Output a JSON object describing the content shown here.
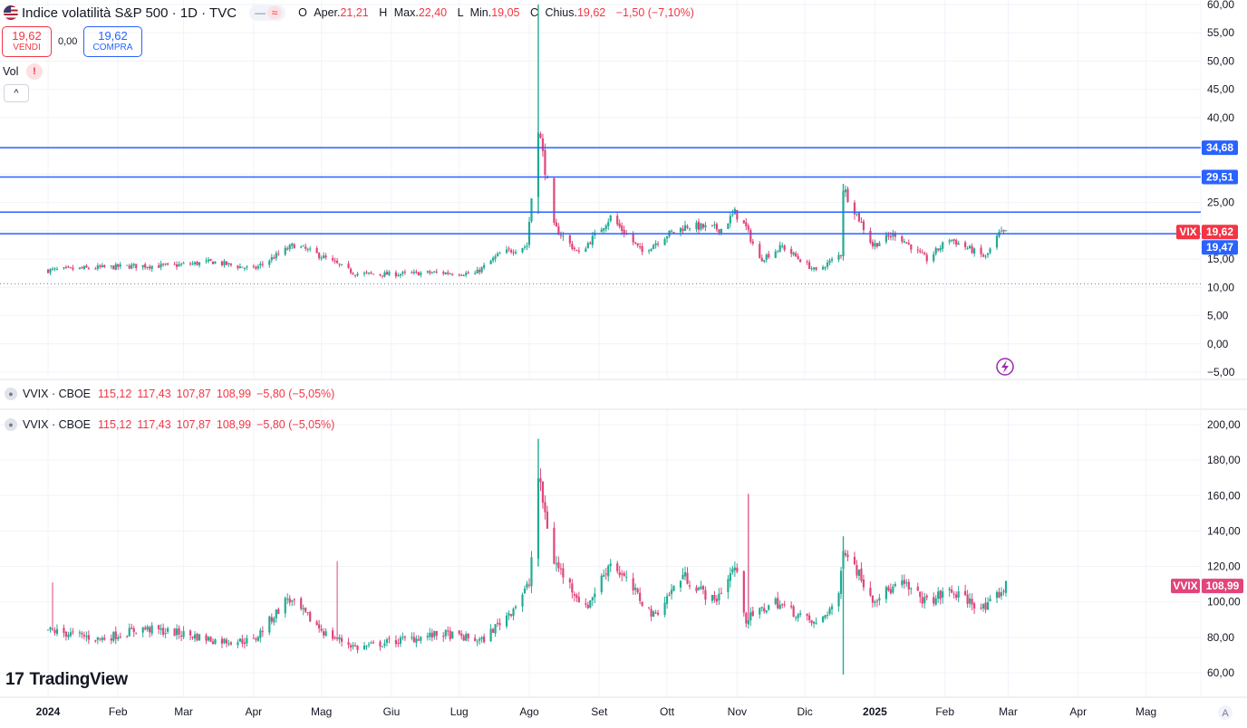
{
  "header": {
    "title": "Indice volatilità S&P 500 · 1D · TVC",
    "pill_left": "—",
    "pill_right": "≈",
    "ohlc": [
      {
        "k": "O",
        "v": "Aper.21,21"
      },
      {
        "k": "H",
        "v": "Max.22,40"
      },
      {
        "k": "L",
        "v": "Min.19,05"
      },
      {
        "k": "C",
        "v": "Chius.19,62"
      },
      {
        "k": "",
        "v": "−1,50 (−7,10%)"
      }
    ],
    "ohlc_labels": {
      "o": "O",
      "o_v": "Aper.",
      "o_n": "21,21",
      "h": "H",
      "h_v": "Max.",
      "h_n": "22,40",
      "l": "L",
      "l_v": "Min.",
      "l_n": "19,05",
      "c": "C",
      "c_v": "Chius.",
      "c_n": "19,62",
      "chg": "−1,50 (−7,10%)"
    }
  },
  "trade": {
    "sell_price": "19,62",
    "sell_label": "VENDI",
    "spread": "0,00",
    "buy_price": "19,62",
    "buy_label": "COMPRA"
  },
  "volume": {
    "label": "Vol",
    "warning": "!",
    "collapse": "^"
  },
  "vvix_legend": {
    "name": "VVIX · CBOE",
    "open": "115,12",
    "high": "117,43",
    "low": "107,87",
    "close": "108,99",
    "change": "−5,80 (−5,05%)"
  },
  "branding": {
    "mark": "17",
    "name": "TradingView"
  },
  "colors": {
    "up": "#22ab94",
    "down": "#e0457b",
    "hline": "#2962ff",
    "vix_badge": "#f23645",
    "vvix_badge": "#e0457b",
    "axis_text": "#131722"
  },
  "icons": {
    "flash": "lightning-icon",
    "flag": "us-flag-icon",
    "eye": "eye-icon"
  },
  "chart_data": [
    {
      "type": "candlestick",
      "title": "Indice volatilità S&P 500",
      "series_name": "VIX",
      "ylim": [
        -5,
        60
      ],
      "yticks": [
        "60,00",
        "55,00",
        "50,00",
        "45,00",
        "40,00",
        "35,00",
        "30,00",
        "25,00",
        "20,00",
        "15,00",
        "10,00",
        "5,00",
        "0,00",
        "−5,00"
      ],
      "ytick_values": [
        60,
        55,
        50,
        45,
        40,
        35,
        30,
        25,
        20,
        15,
        10,
        5,
        0,
        -5
      ],
      "last_value": "19,62",
      "last_label": "VIX",
      "horizontal_lines": [
        {
          "value": 34.68,
          "label": "34,68"
        },
        {
          "value": 29.51,
          "label": "29,51"
        },
        {
          "value": 23.3,
          "label": ""
        },
        {
          "value": 19.47,
          "label": "19,47"
        }
      ],
      "dotted_line": 10.62,
      "anchors": [
        {
          "date": "2024-01-01",
          "v": 13.0
        },
        {
          "date": "2024-01-20",
          "v": 13.4
        },
        {
          "date": "2024-02-10",
          "v": 13.8
        },
        {
          "date": "2024-02-24",
          "v": 13.8
        },
        {
          "date": "2024-03-14",
          "v": 14.5
        },
        {
          "date": "2024-04-01",
          "v": 13.2
        },
        {
          "date": "2024-04-19",
          "v": 17.5
        },
        {
          "date": "2024-05-01",
          "v": 15.5
        },
        {
          "date": "2024-05-16",
          "v": 12.4
        },
        {
          "date": "2024-06-01",
          "v": 12.3
        },
        {
          "date": "2024-06-20",
          "v": 12.6
        },
        {
          "date": "2024-07-08",
          "v": 12.4
        },
        {
          "date": "2024-07-19",
          "v": 15.9
        },
        {
          "date": "2024-07-31",
          "v": 17.4
        },
        {
          "date": "2024-08-05",
          "v": 38.6
        },
        {
          "date": "2024-08-12",
          "v": 20.7
        },
        {
          "date": "2024-08-23",
          "v": 15.9
        },
        {
          "date": "2024-09-06",
          "v": 22.4
        },
        {
          "date": "2024-09-20",
          "v": 16.2
        },
        {
          "date": "2024-10-01",
          "v": 19.3
        },
        {
          "date": "2024-10-10",
          "v": 20.9
        },
        {
          "date": "2024-10-25",
          "v": 20.3
        },
        {
          "date": "2024-10-31",
          "v": 23.2
        },
        {
          "date": "2024-11-05",
          "v": 20.5
        },
        {
          "date": "2024-11-11",
          "v": 14.9
        },
        {
          "date": "2024-11-21",
          "v": 17.2
        },
        {
          "date": "2024-12-06",
          "v": 12.8
        },
        {
          "date": "2024-12-17",
          "v": 15.9
        },
        {
          "date": "2024-12-18",
          "v": 27.6
        },
        {
          "date": "2024-12-31",
          "v": 17.4
        },
        {
          "date": "2025-01-10",
          "v": 19.5
        },
        {
          "date": "2025-01-24",
          "v": 14.9
        },
        {
          "date": "2025-02-03",
          "v": 18.6
        },
        {
          "date": "2025-02-19",
          "v": 15.3
        },
        {
          "date": "2025-02-25",
          "v": 19.4
        },
        {
          "date": "2025-02-28",
          "v": 19.62
        }
      ]
    },
    {
      "type": "candlestick",
      "title": "VVIX · CBOE",
      "series_name": "VVIX",
      "ylim": [
        50,
        205
      ],
      "yticks": [
        "200,00",
        "180,00",
        "160,00",
        "140,00",
        "120,00",
        "100,00",
        "80,00",
        "60,00"
      ],
      "ytick_values": [
        200,
        180,
        160,
        140,
        120,
        100,
        80,
        60
      ],
      "last_value": "108,99",
      "last_label": "VVIX",
      "anchors": [
        {
          "date": "2024-01-01",
          "v": 84
        },
        {
          "date": "2024-01-24",
          "v": 79
        },
        {
          "date": "2024-02-12",
          "v": 85
        },
        {
          "date": "2024-03-01",
          "v": 82
        },
        {
          "date": "2024-03-16",
          "v": 78
        },
        {
          "date": "2024-04-01",
          "v": 78
        },
        {
          "date": "2024-04-16",
          "v": 102
        },
        {
          "date": "2024-05-03",
          "v": 82
        },
        {
          "date": "2024-05-17",
          "v": 74
        },
        {
          "date": "2024-06-03",
          "v": 78
        },
        {
          "date": "2024-06-24",
          "v": 82
        },
        {
          "date": "2024-07-11",
          "v": 78
        },
        {
          "date": "2024-07-24",
          "v": 95
        },
        {
          "date": "2024-08-01",
          "v": 110
        },
        {
          "date": "2024-08-05",
          "v": 170
        },
        {
          "date": "2024-08-12",
          "v": 123
        },
        {
          "date": "2024-08-26",
          "v": 96
        },
        {
          "date": "2024-09-06",
          "v": 123
        },
        {
          "date": "2024-09-25",
          "v": 92
        },
        {
          "date": "2024-10-08",
          "v": 115
        },
        {
          "date": "2024-10-22",
          "v": 100
        },
        {
          "date": "2024-10-31",
          "v": 120
        },
        {
          "date": "2024-11-05",
          "v": 90
        },
        {
          "date": "2024-11-18",
          "v": 100
        },
        {
          "date": "2024-12-06",
          "v": 87
        },
        {
          "date": "2024-12-16",
          "v": 102
        },
        {
          "date": "2024-12-18",
          "v": 132
        },
        {
          "date": "2024-12-31",
          "v": 102
        },
        {
          "date": "2025-01-13",
          "v": 110
        },
        {
          "date": "2025-01-24",
          "v": 100
        },
        {
          "date": "2025-02-03",
          "v": 106
        },
        {
          "date": "2025-02-19",
          "v": 96
        },
        {
          "date": "2025-02-28",
          "v": 108.99
        }
      ]
    }
  ],
  "x_axis": {
    "ticks": [
      {
        "label": "2024",
        "date": "2024-01-01",
        "bold": true
      },
      {
        "label": "Feb",
        "date": "2024-02-01"
      },
      {
        "label": "Mar",
        "date": "2024-03-01"
      },
      {
        "label": "Apr",
        "date": "2024-04-01"
      },
      {
        "label": "Mag",
        "date": "2024-05-01"
      },
      {
        "label": "Giu",
        "date": "2024-06-01"
      },
      {
        "label": "Lug",
        "date": "2024-07-01"
      },
      {
        "label": "Ago",
        "date": "2024-08-01"
      },
      {
        "label": "Set",
        "date": "2024-09-01"
      },
      {
        "label": "Ott",
        "date": "2024-10-01"
      },
      {
        "label": "Nov",
        "date": "2024-11-01"
      },
      {
        "label": "Dic",
        "date": "2024-12-01"
      },
      {
        "label": "2025",
        "date": "2025-01-01",
        "bold": true
      },
      {
        "label": "Feb",
        "date": "2025-02-01"
      },
      {
        "label": "Mar",
        "date": "2025-03-01"
      },
      {
        "label": "Apr",
        "date": "2025-04-01"
      },
      {
        "label": "Mag",
        "date": "2025-05-01"
      }
    ],
    "auto_scale": "A"
  }
}
